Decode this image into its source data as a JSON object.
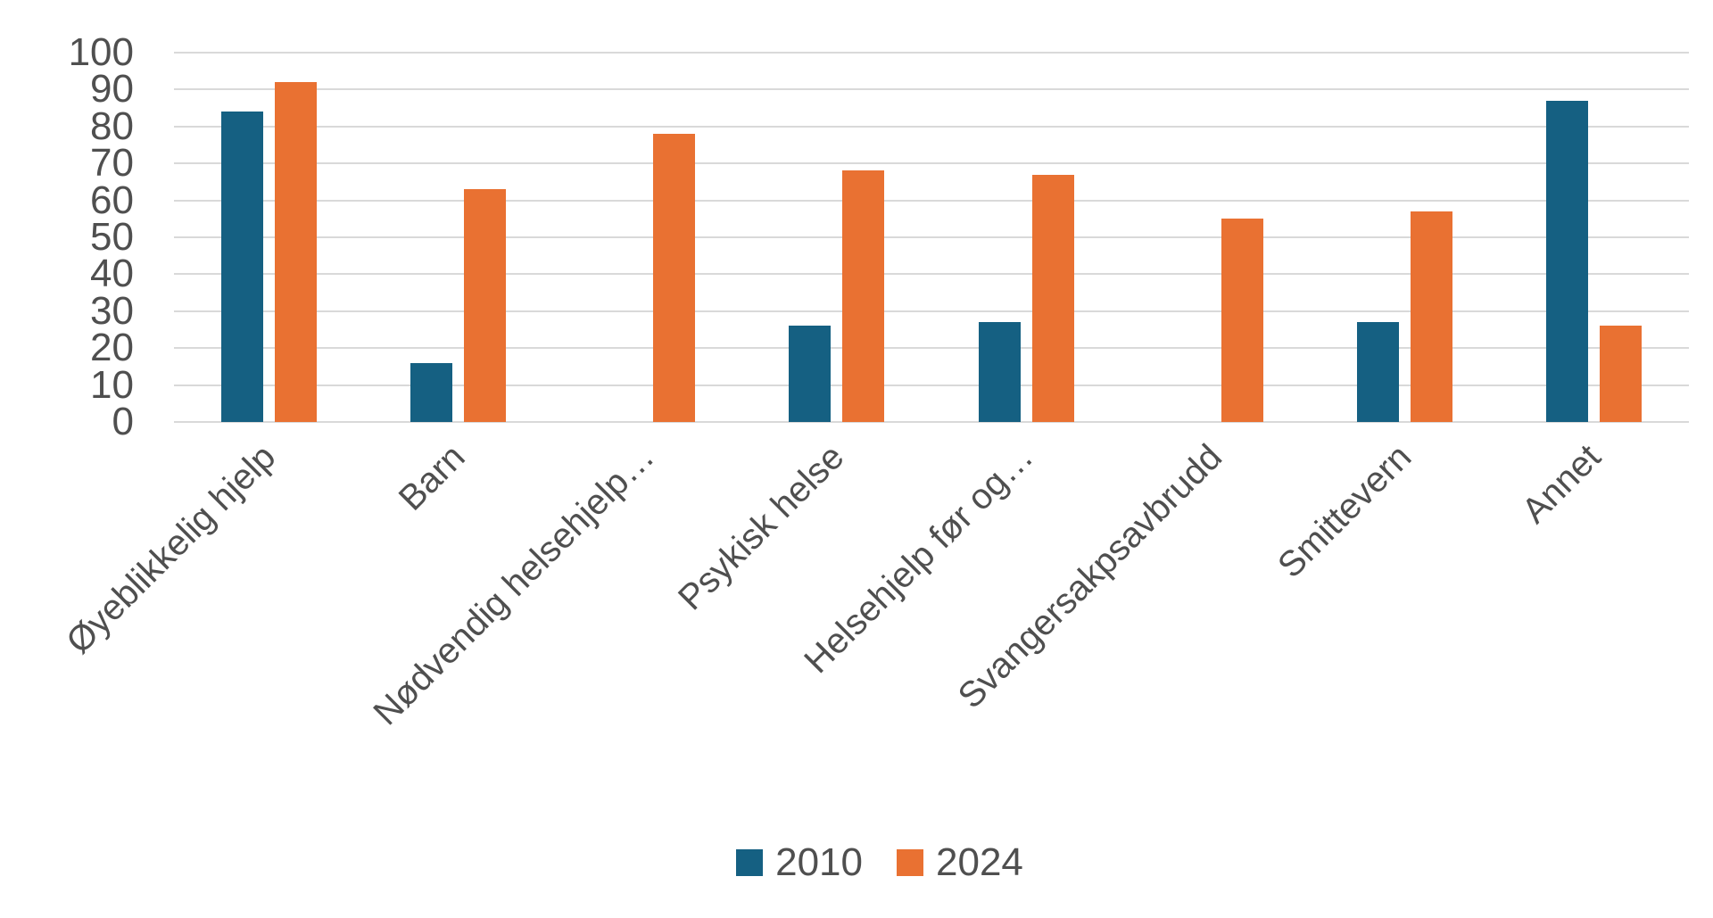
{
  "chart_data": {
    "type": "bar",
    "title": "",
    "xlabel": "",
    "ylabel": "",
    "categories": [
      "Øyeblikkelig hjelp",
      "Barn",
      "Nødvendig helsehjelp…",
      "Psykisk helse",
      "Helsehjelp før og…",
      "Svangersakpsavbrudd",
      "Smittevern",
      "Annet"
    ],
    "series": [
      {
        "name": "2010",
        "color": "#156082",
        "values": [
          84,
          16,
          0,
          26,
          27,
          0,
          27,
          87
        ]
      },
      {
        "name": "2024",
        "color": "#E97132",
        "values": [
          92,
          63,
          78,
          68,
          67,
          55,
          57,
          26
        ]
      }
    ],
    "ylim": [
      0,
      100
    ],
    "yticks": [
      0,
      10,
      20,
      30,
      40,
      50,
      60,
      70,
      80,
      90,
      100
    ],
    "grid": "horizontal",
    "legend_position": "bottom",
    "x_label_rotation_deg": -45
  },
  "colors": {
    "background": "#FFFFFF",
    "gridline": "#D9D9D9",
    "axis_text": "#4F4F4F",
    "series_2010": "#156082",
    "series_2024": "#E97132"
  },
  "legend": {
    "items": [
      {
        "label": "2010",
        "color": "#156082"
      },
      {
        "label": "2024",
        "color": "#E97132"
      }
    ]
  }
}
